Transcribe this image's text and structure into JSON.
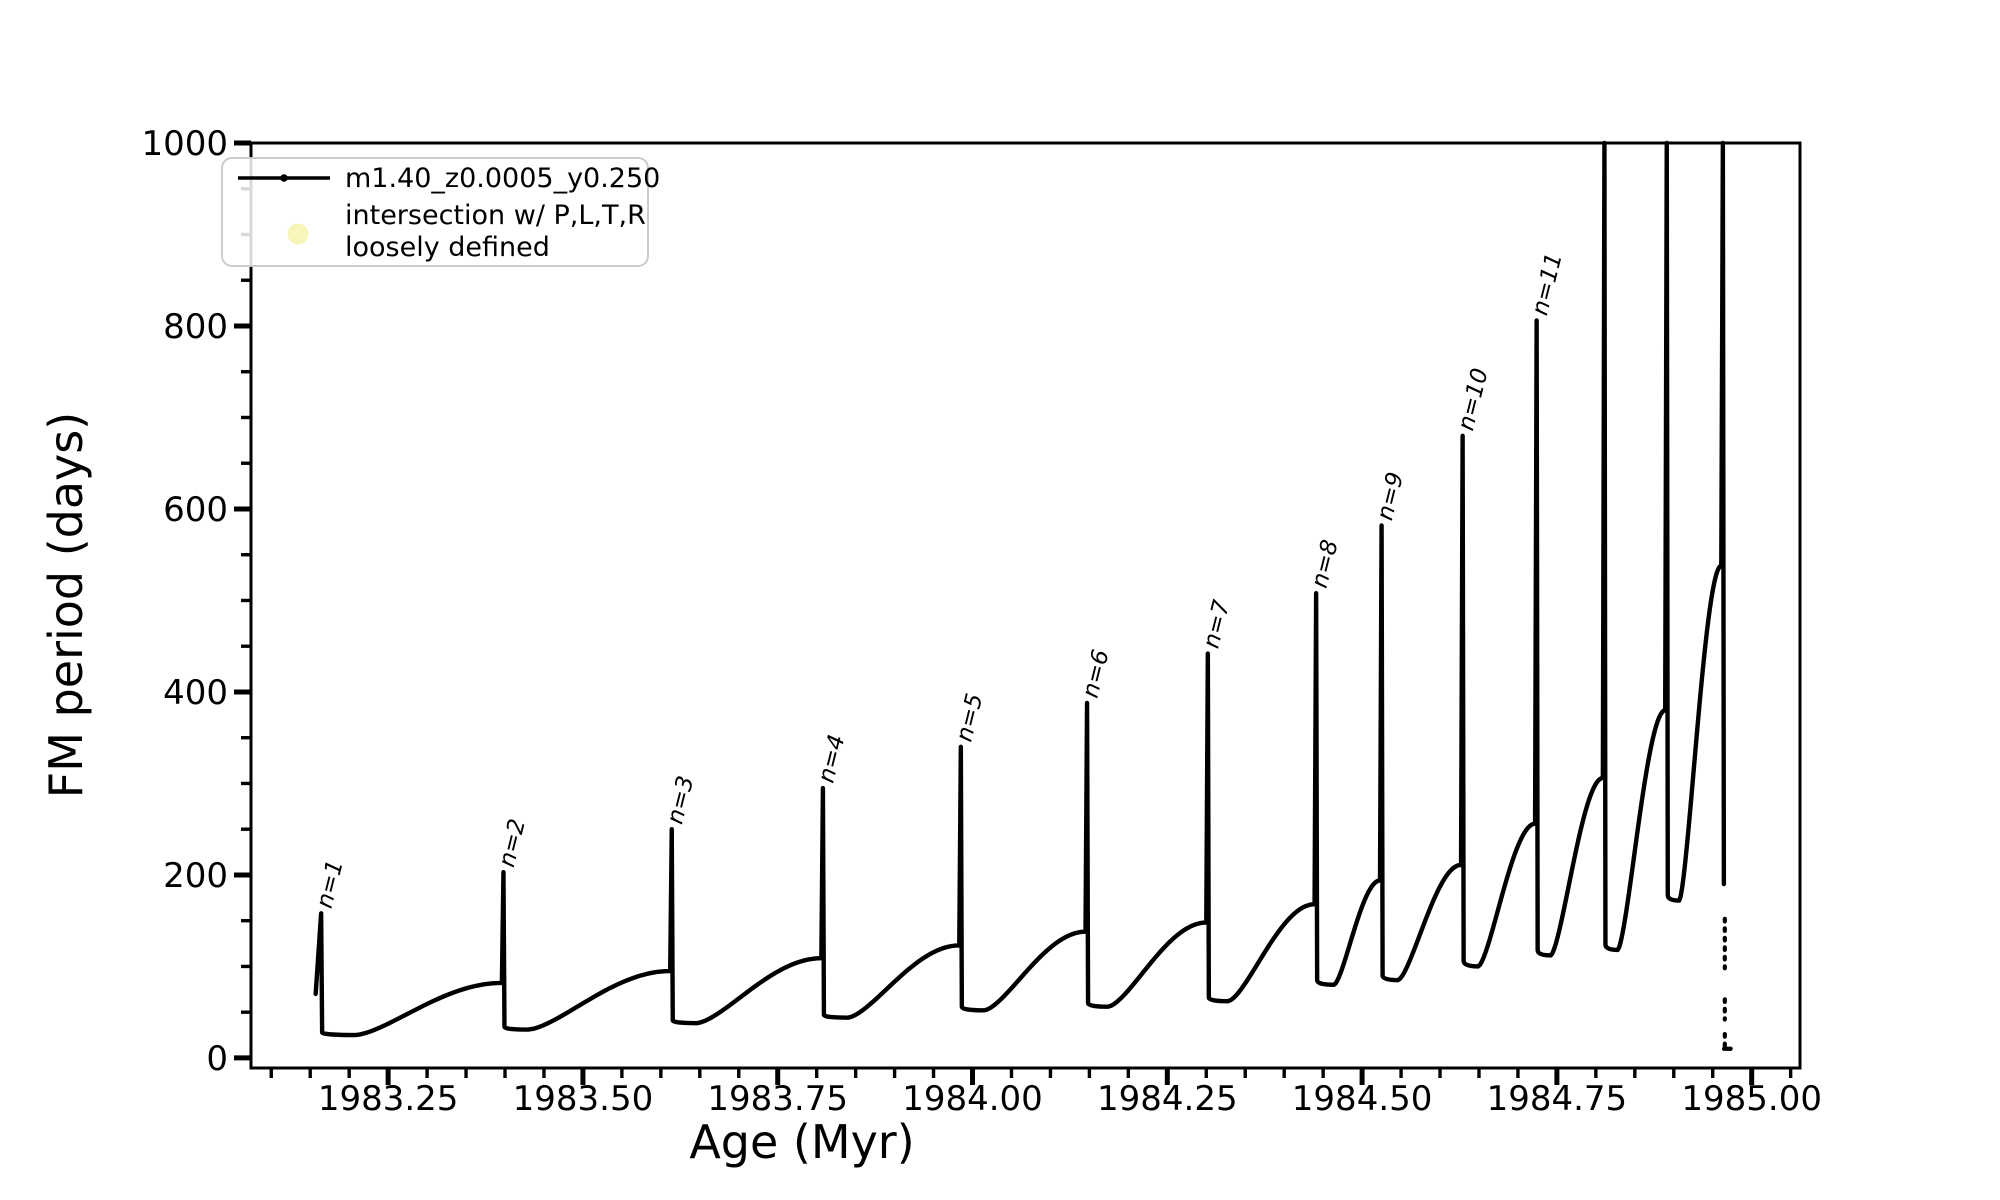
{
  "figure": {
    "background": "#ffffff",
    "series_color": "#000000",
    "intersection_marker_color": "#f8f5bb"
  },
  "legend": {
    "series_label": "m1.40_z0.0005_y0.250",
    "intersection_label_line1": "intersection w/ P,L,T,R",
    "intersection_label_line2": "loosely defined"
  },
  "chart_data": {
    "type": "line",
    "title": "",
    "xlabel": "Age (Myr)",
    "ylabel": "FM period (days)",
    "xlim": [
      1983.074,
      1985.062
    ],
    "ylim": [
      -11,
      1000
    ],
    "grid": false,
    "legend_position": "upper left",
    "x_major_ticks": [
      {
        "value": 1983.25,
        "label": "1983.25"
      },
      {
        "value": 1983.5,
        "label": "1983.50"
      },
      {
        "value": 1983.75,
        "label": "1983.75"
      },
      {
        "value": 1984.0,
        "label": "1984.00"
      },
      {
        "value": 1984.25,
        "label": "1984.25"
      },
      {
        "value": 1984.5,
        "label": "1984.50"
      },
      {
        "value": 1984.75,
        "label": "1984.75"
      },
      {
        "value": 1985.0,
        "label": "1985.00"
      }
    ],
    "x_minor_step": 0.05,
    "y_major_ticks": [
      {
        "value": 0,
        "label": "0"
      },
      {
        "value": 200,
        "label": "200"
      },
      {
        "value": 400,
        "label": "400"
      },
      {
        "value": 600,
        "label": "600"
      },
      {
        "value": 800,
        "label": "800"
      },
      {
        "value": 1000,
        "label": "1000"
      }
    ],
    "y_minor_step": 50,
    "series_name": "m1.40_z0.0005_y0.250",
    "start_point": [
      1983.157,
      70
    ],
    "cycles": [
      {
        "label": "n=1",
        "spike_x": 1983.164,
        "peak": 158,
        "clipped": false,
        "drop_to": 28,
        "dip_x": 1983.208,
        "dip_y": 25,
        "rise_to_x": 1983.396,
        "rise_to_y": 82
      },
      {
        "label": "n=2",
        "spike_x": 1983.398,
        "peak": 203,
        "clipped": false,
        "drop_to": 34,
        "dip_x": 1983.43,
        "dip_y": 31,
        "rise_to_x": 1983.612,
        "rise_to_y": 95
      },
      {
        "label": "n=3",
        "spike_x": 1983.614,
        "peak": 250,
        "clipped": false,
        "drop_to": 41,
        "dip_x": 1983.646,
        "dip_y": 38,
        "rise_to_x": 1983.806,
        "rise_to_y": 109
      },
      {
        "label": "n=4",
        "spike_x": 1983.808,
        "peak": 295,
        "clipped": false,
        "drop_to": 47,
        "dip_x": 1983.84,
        "dip_y": 44,
        "rise_to_x": 1983.983,
        "rise_to_y": 123
      },
      {
        "label": "n=5",
        "spike_x": 1983.985,
        "peak": 340,
        "clipped": false,
        "drop_to": 56,
        "dip_x": 1984.015,
        "dip_y": 52,
        "rise_to_x": 1984.145,
        "rise_to_y": 138
      },
      {
        "label": "n=6",
        "spike_x": 1984.147,
        "peak": 388,
        "clipped": false,
        "drop_to": 60,
        "dip_x": 1984.174,
        "dip_y": 56,
        "rise_to_x": 1984.3,
        "rise_to_y": 148
      },
      {
        "label": "n=7",
        "spike_x": 1984.302,
        "peak": 442,
        "clipped": false,
        "drop_to": 66,
        "dip_x": 1984.328,
        "dip_y": 62,
        "rise_to_x": 1984.439,
        "rise_to_y": 168
      },
      {
        "label": "n=8",
        "spike_x": 1984.441,
        "peak": 508,
        "clipped": false,
        "drop_to": 85,
        "dip_x": 1984.464,
        "dip_y": 80,
        "rise_to_x": 1984.523,
        "rise_to_y": 194
      },
      {
        "label": "n=9",
        "spike_x": 1984.525,
        "peak": 582,
        "clipped": false,
        "drop_to": 90,
        "dip_x": 1984.546,
        "dip_y": 85,
        "rise_to_x": 1984.627,
        "rise_to_y": 211
      },
      {
        "label": "n=10",
        "spike_x": 1984.629,
        "peak": 680,
        "clipped": false,
        "drop_to": 106,
        "dip_x": 1984.649,
        "dip_y": 100,
        "rise_to_x": 1984.722,
        "rise_to_y": 256
      },
      {
        "label": "n=11",
        "spike_x": 1984.724,
        "peak": 806,
        "clipped": false,
        "drop_to": 118,
        "dip_x": 1984.742,
        "dip_y": 112,
        "rise_to_x": 1984.809,
        "rise_to_y": 306
      },
      {
        "label": null,
        "spike_x": 1984.811,
        "peak": 1000,
        "clipped": true,
        "drop_to": 124,
        "dip_x": 1984.828,
        "dip_y": 118,
        "rise_to_x": 1984.889,
        "rise_to_y": 380
      },
      {
        "label": null,
        "spike_x": 1984.891,
        "peak": 1000,
        "clipped": true,
        "drop_to": 178,
        "dip_x": 1984.907,
        "dip_y": 172,
        "rise_to_x": 1984.961,
        "rise_to_y": 538
      },
      {
        "label": null,
        "spike_x": 1984.963,
        "peak": 1000,
        "clipped": true,
        "drop_to": 190,
        "dip_x": null,
        "dip_y": null,
        "rise_to_x": null,
        "rise_to_y": null
      }
    ],
    "tail": {
      "x": 1984.9655,
      "dash_segments": [
        [
          152,
          98
        ],
        [
          64,
          42
        ],
        [
          26,
          12
        ]
      ],
      "foot": {
        "x1": 1984.9645,
        "x2": 1984.973,
        "y": 10
      }
    }
  }
}
